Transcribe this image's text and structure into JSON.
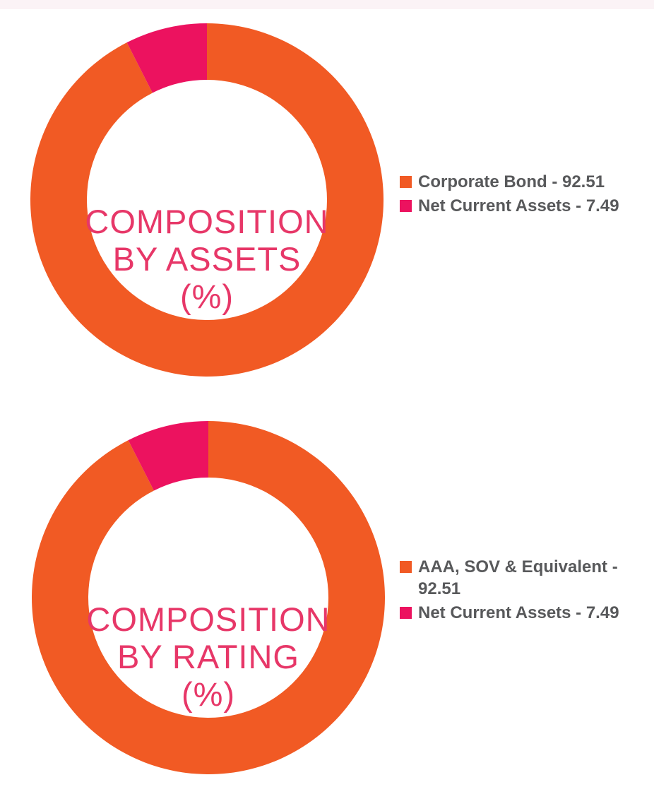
{
  "page": {
    "background": "#FFFFFF",
    "top_strip_color": "#FBF3F6"
  },
  "palette": {
    "orange": "#F15A24",
    "pink": "#EC125F",
    "title_pink": "#E73768",
    "legend_text_gray": "#58595B"
  },
  "chart_data": [
    {
      "type": "pie",
      "subtype": "donut",
      "title": "COMPOSITION BY ASSETS (%)",
      "title_lines": [
        "COMPOSITION",
        "BY ASSETS",
        "(%)"
      ],
      "start_angle_deg": 0,
      "direction": "clockwise",
      "inner_radius_ratio": 0.68,
      "legend_position": "right",
      "slices": [
        {
          "label": "Corporate Bond",
          "value": 92.51,
          "color": "#F15A24",
          "legend_label": "Corporate Bond - 92.51"
        },
        {
          "label": "Net Current Assets",
          "value": 7.49,
          "color": "#EC125F",
          "legend_label": "Net Current Assets - 7.49"
        }
      ]
    },
    {
      "type": "pie",
      "subtype": "donut",
      "title": "COMPOSITION BY RATING (%)",
      "title_lines": [
        "COMPOSITION",
        "BY RATING",
        "(%)"
      ],
      "start_angle_deg": 0,
      "direction": "clockwise",
      "inner_radius_ratio": 0.68,
      "legend_position": "right",
      "slices": [
        {
          "label": "AAA, SOV & Equivalent",
          "value": 92.51,
          "color": "#F15A24",
          "legend_label": "AAA, SOV & Equivalent - 92.51"
        },
        {
          "label": "Net Current Assets",
          "value": 7.49,
          "color": "#EC125F",
          "legend_label": "Net Current Assets - 7.49"
        }
      ]
    }
  ]
}
